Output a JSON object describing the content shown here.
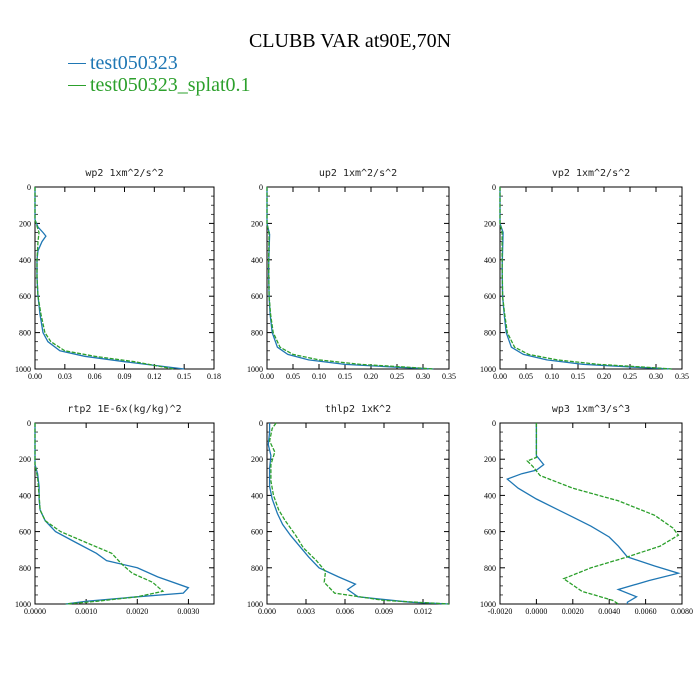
{
  "figure_title": "CLUBB VAR at90E,70N",
  "legend": [
    {
      "label": "test050323",
      "color": "#1f77b4"
    },
    {
      "label": "test050323_splat0.1",
      "color": "#2ca02c"
    }
  ],
  "chart_data": [
    {
      "type": "line",
      "title": "wp2   1xm^2/s^2",
      "xlim": [
        0,
        0.18
      ],
      "ylim": [
        1000,
        0
      ],
      "xticks": [
        "0.00",
        "0.03",
        "0.06",
        "0.09",
        "0.12",
        "0.15",
        "0.18"
      ],
      "yticks": [
        "0",
        "200",
        "400",
        "600",
        "800",
        "1000"
      ],
      "series": [
        {
          "color": "#1f77b4",
          "dash": false,
          "points": [
            [
              0,
              0
            ],
            [
              0,
              180
            ],
            [
              0.003,
              220
            ],
            [
              0.008,
              250
            ],
            [
              0.011,
              270
            ],
            [
              0.007,
              300
            ],
            [
              0.003,
              350
            ],
            [
              0.002,
              400
            ],
            [
              0.002,
              500
            ],
            [
              0.003,
              600
            ],
            [
              0.005,
              700
            ],
            [
              0.008,
              800
            ],
            [
              0.013,
              850
            ],
            [
              0.025,
              900
            ],
            [
              0.05,
              930
            ],
            [
              0.09,
              960
            ],
            [
              0.15,
              1000
            ]
          ]
        },
        {
          "color": "#2ca02c",
          "dash": true,
          "points": [
            [
              0,
              0
            ],
            [
              0,
              180
            ],
            [
              0.004,
              250
            ],
            [
              0.003,
              300
            ],
            [
              0.002,
              400
            ],
            [
              0.002,
              500
            ],
            [
              0.003,
              600
            ],
            [
              0.006,
              700
            ],
            [
              0.01,
              800
            ],
            [
              0.016,
              850
            ],
            [
              0.03,
              900
            ],
            [
              0.06,
              930
            ],
            [
              0.1,
              960
            ],
            [
              0.14,
              1000
            ]
          ]
        }
      ]
    },
    {
      "type": "line",
      "title": "up2   1xm^2/s^2",
      "xlim": [
        0,
        0.35
      ],
      "ylim": [
        1000,
        0
      ],
      "xticks": [
        "0.00",
        "0.05",
        "0.10",
        "0.15",
        "0.20",
        "0.25",
        "0.30",
        "0.35"
      ],
      "yticks": [
        "0",
        "200",
        "400",
        "600",
        "800",
        "1000"
      ],
      "series": [
        {
          "color": "#1f77b4",
          "dash": false,
          "points": [
            [
              0,
              0
            ],
            [
              0,
              200
            ],
            [
              0.005,
              260
            ],
            [
              0.004,
              350
            ],
            [
              0.003,
              450
            ],
            [
              0.004,
              600
            ],
            [
              0.006,
              700
            ],
            [
              0.01,
              800
            ],
            [
              0.02,
              880
            ],
            [
              0.04,
              920
            ],
            [
              0.08,
              950
            ],
            [
              0.15,
              975
            ],
            [
              0.25,
              990
            ],
            [
              0.32,
              1000
            ]
          ]
        },
        {
          "color": "#2ca02c",
          "dash": true,
          "points": [
            [
              0,
              0
            ],
            [
              0,
              200
            ],
            [
              0.004,
              260
            ],
            [
              0.003,
              400
            ],
            [
              0.004,
              600
            ],
            [
              0.007,
              700
            ],
            [
              0.012,
              800
            ],
            [
              0.025,
              880
            ],
            [
              0.05,
              920
            ],
            [
              0.1,
              950
            ],
            [
              0.18,
              975
            ],
            [
              0.28,
              992
            ],
            [
              0.32,
              1000
            ]
          ]
        }
      ]
    },
    {
      "type": "line",
      "title": "vp2   1xm^2/s^2",
      "xlim": [
        0,
        0.35
      ],
      "ylim": [
        1000,
        0
      ],
      "xticks": [
        "0.00",
        "0.05",
        "0.10",
        "0.15",
        "0.20",
        "0.25",
        "0.30",
        "0.35"
      ],
      "yticks": [
        "0",
        "200",
        "400",
        "600",
        "800",
        "1000"
      ],
      "series": [
        {
          "color": "#1f77b4",
          "dash": false,
          "points": [
            [
              0,
              0
            ],
            [
              0,
              200
            ],
            [
              0.006,
              250
            ],
            [
              0.005,
              350
            ],
            [
              0.004,
              450
            ],
            [
              0.005,
              600
            ],
            [
              0.008,
              700
            ],
            [
              0.012,
              800
            ],
            [
              0.022,
              880
            ],
            [
              0.045,
              920
            ],
            [
              0.09,
              950
            ],
            [
              0.16,
              975
            ],
            [
              0.26,
              990
            ],
            [
              0.33,
              1000
            ]
          ]
        },
        {
          "color": "#2ca02c",
          "dash": true,
          "points": [
            [
              0,
              0
            ],
            [
              0,
              200
            ],
            [
              0.004,
              250
            ],
            [
              0.004,
              400
            ],
            [
              0.005,
              600
            ],
            [
              0.009,
              700
            ],
            [
              0.014,
              800
            ],
            [
              0.028,
              880
            ],
            [
              0.055,
              920
            ],
            [
              0.11,
              950
            ],
            [
              0.19,
              975
            ],
            [
              0.29,
              992
            ],
            [
              0.33,
              1000
            ]
          ]
        }
      ]
    },
    {
      "type": "line",
      "title": "rtp2   1E-6x(kg/kg)^2",
      "xlim": [
        0,
        0.0035
      ],
      "ylim": [
        1000,
        0
      ],
      "xticks": [
        "0.0000",
        "0.0010",
        "0.0020",
        "0.0030"
      ],
      "yticks": [
        "0",
        "200",
        "400",
        "600",
        "800",
        "1000"
      ],
      "series": [
        {
          "color": "#1f77b4",
          "dash": false,
          "points": [
            [
              0,
              0
            ],
            [
              0,
              230
            ],
            [
              5e-05,
              280
            ],
            [
              8e-05,
              350
            ],
            [
              8e-05,
              420
            ],
            [
              0.0001,
              480
            ],
            [
              0.0002,
              540
            ],
            [
              0.0004,
              600
            ],
            [
              0.0008,
              660
            ],
            [
              0.0012,
              720
            ],
            [
              0.0014,
              760
            ],
            [
              0.002,
              800
            ],
            [
              0.0024,
              850
            ],
            [
              0.003,
              910
            ],
            [
              0.0029,
              940
            ],
            [
              0.002,
              960
            ],
            [
              0.001,
              985
            ],
            [
              0.0006,
              1000
            ]
          ]
        },
        {
          "color": "#2ca02c",
          "dash": true,
          "points": [
            [
              0,
              0
            ],
            [
              0,
              230
            ],
            [
              5e-05,
              300
            ],
            [
              8e-05,
              400
            ],
            [
              0.0001,
              480
            ],
            [
              0.0002,
              540
            ],
            [
              0.0005,
              600
            ],
            [
              0.001,
              660
            ],
            [
              0.0015,
              720
            ],
            [
              0.0017,
              780
            ],
            [
              0.0019,
              830
            ],
            [
              0.0023,
              880
            ],
            [
              0.0025,
              930
            ],
            [
              0.002,
              960
            ],
            [
              0.0012,
              985
            ],
            [
              0.0006,
              1000
            ]
          ]
        }
      ]
    },
    {
      "type": "line",
      "title": "thlp2   1xK^2",
      "xlim": [
        0,
        0.014
      ],
      "ylim": [
        1000,
        0
      ],
      "xticks": [
        "0.000",
        "0.003",
        "0.006",
        "0.009",
        "0.012"
      ],
      "yticks": [
        "0",
        "200",
        "400",
        "600",
        "800",
        "1000"
      ],
      "series": [
        {
          "color": "#1f77b4",
          "dash": false,
          "points": [
            [
              0.0002,
              0
            ],
            [
              0.0002,
              50
            ],
            [
              0.0001,
              120
            ],
            [
              0.0003,
              180
            ],
            [
              0.0002,
              250
            ],
            [
              0.0002,
              350
            ],
            [
              0.0004,
              420
            ],
            [
              0.0008,
              500
            ],
            [
              0.0012,
              560
            ],
            [
              0.0018,
              620
            ],
            [
              0.0025,
              680
            ],
            [
              0.0032,
              740
            ],
            [
              0.004,
              800
            ],
            [
              0.0055,
              850
            ],
            [
              0.0068,
              890
            ],
            [
              0.0062,
              920
            ],
            [
              0.007,
              960
            ],
            [
              0.011,
              990
            ],
            [
              0.014,
              1000
            ]
          ]
        },
        {
          "color": "#2ca02c",
          "dash": true,
          "points": [
            [
              0.0007,
              0
            ],
            [
              0.0004,
              30
            ],
            [
              0.0002,
              100
            ],
            [
              0.0006,
              160
            ],
            [
              0.0003,
              230
            ],
            [
              0.0003,
              320
            ],
            [
              0.0005,
              400
            ],
            [
              0.0009,
              480
            ],
            [
              0.0014,
              540
            ],
            [
              0.0022,
              620
            ],
            [
              0.0028,
              690
            ],
            [
              0.0038,
              760
            ],
            [
              0.0045,
              820
            ],
            [
              0.0044,
              880
            ],
            [
              0.0052,
              940
            ],
            [
              0.009,
              980
            ],
            [
              0.014,
              1000
            ]
          ]
        }
      ]
    },
    {
      "type": "line",
      "title": "wp3   1xm^3/s^3",
      "xlim": [
        -0.002,
        0.008
      ],
      "ylim": [
        1000,
        0
      ],
      "xticks": [
        "-0.0020",
        "0.0000",
        "0.0020",
        "0.0040",
        "0.0060",
        "0.0080"
      ],
      "yticks": [
        "0",
        "200",
        "400",
        "600",
        "800",
        "1000"
      ],
      "series": [
        {
          "color": "#1f77b4",
          "dash": false,
          "points": [
            [
              0,
              0
            ],
            [
              0,
              180
            ],
            [
              0.0004,
              230
            ],
            [
              0,
              260
            ],
            [
              -0.0008,
              280
            ],
            [
              -0.0016,
              310
            ],
            [
              -0.001,
              360
            ],
            [
              0,
              420
            ],
            [
              0.001,
              470
            ],
            [
              0.002,
              520
            ],
            [
              0.003,
              570
            ],
            [
              0.004,
              630
            ],
            [
              0.0045,
              680
            ],
            [
              0.005,
              740
            ],
            [
              0.0065,
              790
            ],
            [
              0.0078,
              830
            ],
            [
              0.0062,
              870
            ],
            [
              0.0045,
              920
            ],
            [
              0.0055,
              960
            ],
            [
              0.005,
              990
            ],
            [
              0.005,
              1000
            ]
          ]
        },
        {
          "color": "#2ca02c",
          "dash": true,
          "points": [
            [
              0,
              0
            ],
            [
              0,
              190
            ],
            [
              -0.0005,
              210
            ],
            [
              -0.0002,
              240
            ],
            [
              0.0002,
              290
            ],
            [
              0.002,
              360
            ],
            [
              0.0045,
              430
            ],
            [
              0.0065,
              510
            ],
            [
              0.0075,
              580
            ],
            [
              0.0078,
              620
            ],
            [
              0.0068,
              680
            ],
            [
              0.005,
              740
            ],
            [
              0.003,
              800
            ],
            [
              0.0015,
              860
            ],
            [
              0.0025,
              930
            ],
            [
              0.0042,
              980
            ],
            [
              0.0045,
              1000
            ]
          ]
        }
      ]
    }
  ]
}
